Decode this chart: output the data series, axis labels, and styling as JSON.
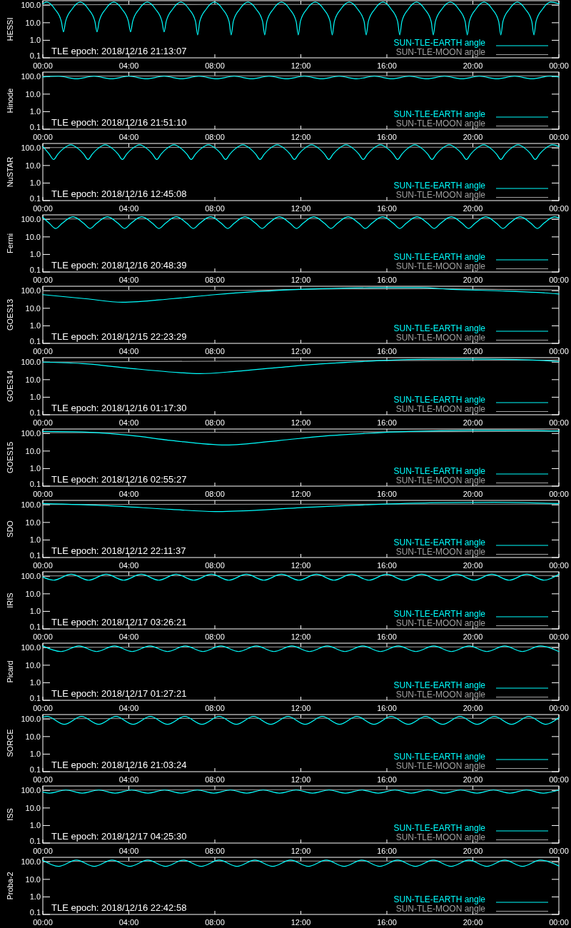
{
  "chart_data": [
    {
      "type": "line",
      "ylabel": "HESSI",
      "annotations": [
        "TLE epoch: 2018/12/16 21:13:07"
      ],
      "xlim": [
        0,
        24
      ],
      "xticks": [
        {
          "value": 0,
          "label": "00:00"
        },
        {
          "value": 4,
          "label": "04:00"
        },
        {
          "value": 8,
          "label": "08:00"
        },
        {
          "value": 12,
          "label": "12:00"
        },
        {
          "value": 16,
          "label": "16:00"
        },
        {
          "value": 20,
          "label": "20:00"
        },
        {
          "value": 24,
          "label": "00:00"
        }
      ],
      "ylim": [
        0.1,
        180
      ],
      "yticks": [
        {
          "value": 0.1,
          "label": "0.1"
        },
        {
          "value": 1,
          "label": "1.0"
        },
        {
          "value": 10,
          "label": "10.0"
        },
        {
          "value": 100,
          "label": "100.0"
        }
      ],
      "log": "y",
      "legend": "bottom right",
      "series": [
        {
          "name": "SUN-TLE-EARTH angle",
          "color": "#00ffff",
          "x": [
            0,
            0.18,
            0.56,
            0.86,
            0.96,
            1.06,
            1.36,
            1.74,
            2.12,
            2.42,
            2.52,
            2.62,
            2.92,
            3.3,
            3.68,
            3.98,
            4.08,
            4.18,
            4.48,
            4.86,
            5.24,
            5.54,
            5.64,
            5.74,
            6.04,
            6.42,
            6.8,
            7.1,
            7.2,
            7.3,
            7.6,
            7.98,
            8.36,
            8.66,
            8.76,
            8.86,
            9.16,
            9.54,
            9.92,
            10.22,
            10.32,
            10.42,
            10.72,
            11.1,
            11.48,
            11.78,
            11.88,
            11.98,
            12.28,
            12.67,
            13.06,
            13.36,
            13.46,
            13.56,
            13.86,
            14.25,
            14.64,
            14.94,
            15.04,
            15.14,
            15.44,
            15.82,
            16.2,
            16.5,
            16.6,
            16.7,
            17.0,
            17.38,
            17.76,
            18.06,
            18.16,
            18.26,
            18.56,
            18.95,
            19.34,
            19.64,
            19.74,
            19.84,
            20.14,
            20.52,
            20.9,
            21.2,
            21.3,
            21.4,
            21.7,
            22.07,
            22.44,
            22.74,
            22.84,
            22.94,
            23.24,
            23.62,
            24
          ],
          "values": [
            120,
            150,
            60,
            12,
            3,
            12,
            60,
            150,
            60,
            12,
            3,
            12,
            60,
            150,
            60,
            12,
            3,
            12,
            60,
            150,
            60,
            12,
            3,
            12,
            60,
            150,
            60,
            12,
            2,
            12,
            60,
            150,
            60,
            12,
            2,
            12,
            60,
            150,
            60,
            12,
            2,
            12,
            60,
            150,
            60,
            12,
            2,
            12,
            60,
            150,
            60,
            12,
            2,
            12,
            60,
            150,
            60,
            12,
            2,
            12,
            60,
            150,
            60,
            12,
            2,
            12,
            60,
            150,
            60,
            12,
            2,
            12,
            60,
            150,
            60,
            12,
            2,
            12,
            60,
            150,
            60,
            12,
            2,
            12,
            60,
            150,
            60,
            12,
            2,
            12,
            60,
            150,
            120
          ]
        },
        {
          "name": "SUN-TLE-MOON angle",
          "color": "#a0a0a0",
          "x": [
            0,
            8,
            24
          ],
          "values": [
            105,
            110,
            110
          ]
        }
      ]
    },
    {
      "type": "line",
      "ylabel": "Hinode",
      "annotations": [
        "TLE epoch: 2018/12/16 21:51:10"
      ],
      "xlim": [
        0,
        24
      ],
      "xticks": [
        {
          "value": 0,
          "label": "00:00"
        },
        {
          "value": 4,
          "label": "04:00"
        },
        {
          "value": 8,
          "label": "08:00"
        },
        {
          "value": 12,
          "label": "12:00"
        },
        {
          "value": 16,
          "label": "16:00"
        },
        {
          "value": 20,
          "label": "20:00"
        },
        {
          "value": 24,
          "label": "00:00"
        }
      ],
      "ylim": [
        0.1,
        180
      ],
      "yticks": [
        {
          "value": 0.1,
          "label": "0.1"
        },
        {
          "value": 1,
          "label": "1.0"
        },
        {
          "value": 10,
          "label": "10.0"
        },
        {
          "value": 100,
          "label": "100.0"
        }
      ],
      "log": "y",
      "legend": "bottom right",
      "series": [
        {
          "name": "SUN-TLE-EARTH angle",
          "color": "#00ffff",
          "x": [
            0,
            0.74,
            1.56,
            2.38,
            3.19,
            4.0,
            4.82,
            5.64,
            6.45,
            7.26,
            8.08,
            8.9,
            9.71,
            10.52,
            11.34,
            12.16,
            12.97,
            13.78,
            14.6,
            15.42,
            16.23,
            17.04,
            17.86,
            18.68,
            19.49,
            20.3,
            21.12,
            21.94,
            22.75,
            23.56,
            24
          ],
          "values": [
            95,
            105,
            75,
            105,
            75,
            105,
            75,
            105,
            75,
            105,
            75,
            105,
            75,
            105,
            75,
            105,
            75,
            105,
            75,
            105,
            75,
            105,
            75,
            105,
            75,
            105,
            75,
            105,
            75,
            105,
            95
          ]
        },
        {
          "name": "SUN-TLE-MOON angle",
          "color": "#a0a0a0",
          "x": [
            0,
            8,
            24
          ],
          "values": [
            105,
            110,
            110
          ]
        }
      ]
    },
    {
      "type": "line",
      "ylabel": "NuSTAR",
      "annotations": [
        "TLE epoch: 2018/12/16 12:45:08"
      ],
      "xlim": [
        0,
        24
      ],
      "xticks": [
        {
          "value": 0,
          "label": "00:00"
        },
        {
          "value": 4,
          "label": "04:00"
        },
        {
          "value": 8,
          "label": "08:00"
        },
        {
          "value": 12,
          "label": "12:00"
        },
        {
          "value": 16,
          "label": "16:00"
        },
        {
          "value": 20,
          "label": "20:00"
        },
        {
          "value": 24,
          "label": "00:00"
        }
      ],
      "ylim": [
        0.1,
        180
      ],
      "yticks": [
        {
          "value": 0.1,
          "label": "0.1"
        },
        {
          "value": 1,
          "label": "1.0"
        },
        {
          "value": 10,
          "label": "10.0"
        },
        {
          "value": 100,
          "label": "100.0"
        }
      ],
      "log": "y",
      "legend": "bottom right",
      "series": [
        {
          "name": "SUN-TLE-EARTH angle",
          "color": "#00ffff",
          "x": [
            0,
            0.3,
            0.5,
            0.7,
            0.95,
            1.3,
            1.65,
            1.9,
            2.1,
            2.3,
            2.55,
            2.9,
            3.25,
            3.5,
            3.7,
            3.9,
            4.15,
            4.5,
            4.85,
            5.1,
            5.3,
            5.5,
            5.75,
            6.1,
            6.45,
            6.7,
            6.9,
            7.1,
            7.35,
            7.7,
            8.05,
            8.3,
            8.5,
            8.7,
            8.95,
            9.3,
            9.65,
            9.9,
            10.1,
            10.3,
            10.55,
            10.9,
            11.25,
            11.5,
            11.7,
            11.9,
            12.15,
            12.5,
            12.85,
            13.1,
            13.3,
            13.5,
            13.75,
            14.1,
            14.45,
            14.7,
            14.9,
            15.1,
            15.35,
            15.7,
            16.05,
            16.3,
            16.5,
            16.7,
            16.95,
            17.3,
            17.65,
            17.9,
            18.1,
            18.3,
            18.55,
            18.9,
            19.25,
            19.5,
            19.7,
            19.9,
            20.15,
            20.5,
            20.85,
            21.1,
            21.3,
            21.5,
            21.75,
            22.1,
            22.45,
            22.7,
            22.9,
            23.1,
            23.35,
            23.7,
            24
          ],
          "values": [
            120,
            45,
            22,
            45,
            90,
            150,
            90,
            45,
            22,
            45,
            90,
            150,
            90,
            45,
            22,
            45,
            90,
            150,
            90,
            45,
            22,
            45,
            90,
            150,
            90,
            45,
            22,
            45,
            90,
            150,
            90,
            45,
            22,
            45,
            90,
            150,
            90,
            45,
            22,
            45,
            90,
            150,
            90,
            45,
            22,
            45,
            90,
            150,
            90,
            45,
            22,
            45,
            90,
            150,
            90,
            45,
            22,
            45,
            90,
            150,
            90,
            45,
            22,
            45,
            90,
            150,
            90,
            45,
            22,
            45,
            90,
            150,
            90,
            45,
            22,
            45,
            90,
            150,
            90,
            45,
            22,
            45,
            90,
            150,
            90,
            45,
            22,
            45,
            90,
            150,
            120
          ]
        },
        {
          "name": "SUN-TLE-MOON angle",
          "color": "#a0a0a0",
          "x": [
            0,
            12,
            24
          ],
          "values": [
            105,
            110,
            110
          ]
        }
      ]
    },
    {
      "type": "line",
      "ylabel": "Fermi",
      "annotations": [
        "TLE epoch: 2018/12/16 20:48:39"
      ],
      "xlim": [
        0,
        24
      ],
      "xticks": [
        {
          "value": 0,
          "label": "00:00"
        },
        {
          "value": 4,
          "label": "04:00"
        },
        {
          "value": 8,
          "label": "08:00"
        },
        {
          "value": 12,
          "label": "12:00"
        },
        {
          "value": 16,
          "label": "16:00"
        },
        {
          "value": 20,
          "label": "20:00"
        },
        {
          "value": 24,
          "label": "00:00"
        }
      ],
      "ylim": [
        0.1,
        180
      ],
      "yticks": [
        {
          "value": 0.1,
          "label": "0.1"
        },
        {
          "value": 1,
          "label": "1.0"
        },
        {
          "value": 10,
          "label": "10.0"
        },
        {
          "value": 100,
          "label": "100.0"
        }
      ],
      "log": "y",
      "legend": "bottom right",
      "series": [
        {
          "name": "SUN-TLE-EARTH angle",
          "color": "#00ffff",
          "x": [
            0,
            0.3,
            0.6,
            0.9,
            1.4,
            1.9,
            2.2,
            2.5,
            3.0,
            3.5,
            3.8,
            4.1,
            4.6,
            5.1,
            5.4,
            5.7,
            6.2,
            6.7,
            7.0,
            7.3,
            7.8,
            8.3,
            8.6,
            8.9,
            9.4,
            9.9,
            10.2,
            10.5,
            11.0,
            11.5,
            11.8,
            12.1,
            12.6,
            13.1,
            13.4,
            13.7,
            14.2,
            14.7,
            15.0,
            15.3,
            15.8,
            16.3,
            16.6,
            16.9,
            17.4,
            17.9,
            18.2,
            18.5,
            19.0,
            19.5,
            19.8,
            20.1,
            20.6,
            21.1,
            21.4,
            21.7,
            22.2,
            22.7,
            23.0,
            23.3,
            23.8,
            24
          ],
          "values": [
            130,
            60,
            30,
            60,
            140,
            60,
            30,
            60,
            140,
            60,
            30,
            60,
            140,
            60,
            30,
            60,
            140,
            60,
            30,
            60,
            140,
            60,
            30,
            60,
            140,
            60,
            30,
            60,
            140,
            60,
            30,
            60,
            140,
            60,
            30,
            60,
            140,
            60,
            30,
            60,
            140,
            60,
            30,
            60,
            140,
            60,
            30,
            60,
            140,
            60,
            30,
            60,
            140,
            60,
            30,
            60,
            140,
            60,
            30,
            60,
            140,
            120
          ]
        },
        {
          "name": "SUN-TLE-MOON angle",
          "color": "#a0a0a0",
          "x": [
            0,
            12,
            24
          ],
          "values": [
            105,
            110,
            110
          ]
        }
      ]
    },
    {
      "type": "line",
      "ylabel": "GOES13",
      "annotations": [
        "TLE epoch: 2018/12/15 22:23:29"
      ],
      "xlim": [
        0,
        24
      ],
      "xticks": [
        {
          "value": 0,
          "label": "00:00"
        },
        {
          "value": 4,
          "label": "04:00"
        },
        {
          "value": 8,
          "label": "08:00"
        },
        {
          "value": 12,
          "label": "12:00"
        },
        {
          "value": 16,
          "label": "16:00"
        },
        {
          "value": 20,
          "label": "20:00"
        },
        {
          "value": 24,
          "label": "00:00"
        }
      ],
      "ylim": [
        0.1,
        180
      ],
      "yticks": [
        {
          "value": 0.1,
          "label": "0.1"
        },
        {
          "value": 1,
          "label": "1.0"
        },
        {
          "value": 10,
          "label": "10.0"
        },
        {
          "value": 100,
          "label": "100.0"
        }
      ],
      "log": "y",
      "legend": "bottom right",
      "series": [
        {
          "name": "SUN-TLE-EARTH angle",
          "color": "#00ffff",
          "x": [
            0,
            2,
            3.7,
            6,
            8,
            10,
            12,
            14,
            16,
            17.5,
            19,
            21,
            23,
            24
          ],
          "values": [
            60,
            35,
            22,
            35,
            60,
            90,
            120,
            140,
            150,
            150,
            120,
            100,
            80,
            65
          ]
        },
        {
          "name": "SUN-TLE-MOON angle",
          "color": "#a0a0a0",
          "x": [
            0,
            9,
            13,
            18,
            22,
            24
          ],
          "values": [
            100,
            105,
            125,
            130,
            115,
            110
          ]
        }
      ]
    },
    {
      "type": "line",
      "ylabel": "GOES14",
      "annotations": [
        "TLE epoch: 2018/12/16 01:17:30"
      ],
      "xlim": [
        0,
        24
      ],
      "xticks": [
        {
          "value": 0,
          "label": "00:00"
        },
        {
          "value": 4,
          "label": "04:00"
        },
        {
          "value": 8,
          "label": "08:00"
        },
        {
          "value": 12,
          "label": "12:00"
        },
        {
          "value": 16,
          "label": "16:00"
        },
        {
          "value": 20,
          "label": "20:00"
        },
        {
          "value": 24,
          "label": "00:00"
        }
      ],
      "ylim": [
        0.1,
        180
      ],
      "yticks": [
        {
          "value": 0.1,
          "label": "0.1"
        },
        {
          "value": 1,
          "label": "1.0"
        },
        {
          "value": 10,
          "label": "10.0"
        },
        {
          "value": 100,
          "label": "100.0"
        }
      ],
      "log": "y",
      "legend": "bottom right",
      "series": [
        {
          "name": "SUN-TLE-EARTH angle",
          "color": "#00ffff",
          "x": [
            0,
            2,
            4,
            6,
            7.3,
            9,
            11,
            13,
            15,
            17,
            19.5,
            22,
            24
          ],
          "values": [
            100,
            80,
            45,
            27,
            22,
            30,
            50,
            80,
            110,
            140,
            150,
            140,
            110
          ]
        },
        {
          "name": "SUN-TLE-MOON angle",
          "color": "#a0a0a0",
          "x": [
            0,
            12,
            24
          ],
          "values": [
            100,
            120,
            130
          ]
        }
      ]
    },
    {
      "type": "line",
      "ylabel": "GOES15",
      "annotations": [
        "TLE epoch: 2018/12/16 02:55:27"
      ],
      "xlim": [
        0,
        24
      ],
      "xticks": [
        {
          "value": 0,
          "label": "00:00"
        },
        {
          "value": 4,
          "label": "04:00"
        },
        {
          "value": 8,
          "label": "08:00"
        },
        {
          "value": 12,
          "label": "12:00"
        },
        {
          "value": 16,
          "label": "16:00"
        },
        {
          "value": 20,
          "label": "20:00"
        },
        {
          "value": 24,
          "label": "00:00"
        }
      ],
      "ylim": [
        0.1,
        180
      ],
      "yticks": [
        {
          "value": 0.1,
          "label": "0.1"
        },
        {
          "value": 1,
          "label": "1.0"
        },
        {
          "value": 10,
          "label": "10.0"
        },
        {
          "value": 100,
          "label": "100.0"
        }
      ],
      "log": "y",
      "legend": "bottom right",
      "series": [
        {
          "name": "SUN-TLE-EARTH angle",
          "color": "#00ffff",
          "x": [
            0,
            2,
            4,
            6,
            8.5,
            11,
            13,
            15,
            17,
            20,
            22,
            24
          ],
          "values": [
            130,
            120,
            80,
            40,
            22,
            40,
            70,
            100,
            130,
            150,
            150,
            140
          ]
        },
        {
          "name": "SUN-TLE-MOON angle",
          "color": "#a0a0a0",
          "x": [
            0,
            12,
            24
          ],
          "values": [
            110,
            120,
            135
          ]
        }
      ]
    },
    {
      "type": "line",
      "ylabel": "SDO",
      "annotations": [
        "TLE epoch: 2018/12/12 22:11:37"
      ],
      "xlim": [
        0,
        24
      ],
      "xticks": [
        {
          "value": 0,
          "label": "00:00"
        },
        {
          "value": 4,
          "label": "04:00"
        },
        {
          "value": 8,
          "label": "08:00"
        },
        {
          "value": 12,
          "label": "12:00"
        },
        {
          "value": 16,
          "label": "16:00"
        },
        {
          "value": 20,
          "label": "20:00"
        },
        {
          "value": 24,
          "label": "00:00"
        }
      ],
      "ylim": [
        0.1,
        180
      ],
      "yticks": [
        {
          "value": 0.1,
          "label": "0.1"
        },
        {
          "value": 1,
          "label": "1.0"
        },
        {
          "value": 10,
          "label": "10.0"
        },
        {
          "value": 100,
          "label": "100.0"
        }
      ],
      "log": "y",
      "legend": "bottom right",
      "series": [
        {
          "name": "SUN-TLE-EARTH angle",
          "color": "#00ffff",
          "x": [
            0,
            3,
            6,
            8,
            10,
            12,
            15,
            18,
            21,
            24
          ],
          "values": [
            120,
            90,
            55,
            42,
            50,
            70,
            100,
            130,
            140,
            120
          ]
        },
        {
          "name": "SUN-TLE-MOON angle",
          "color": "#a0a0a0",
          "x": [
            0,
            12,
            24
          ],
          "values": [
            105,
            110,
            110
          ]
        }
      ]
    },
    {
      "type": "line",
      "ylabel": "IRIS",
      "annotations": [
        "TLE epoch: 2018/12/17 03:26:21"
      ],
      "xlim": [
        0,
        24
      ],
      "xticks": [
        {
          "value": 0,
          "label": "00:00"
        },
        {
          "value": 4,
          "label": "04:00"
        },
        {
          "value": 8,
          "label": "08:00"
        },
        {
          "value": 12,
          "label": "12:00"
        },
        {
          "value": 16,
          "label": "16:00"
        },
        {
          "value": 20,
          "label": "20:00"
        },
        {
          "value": 24,
          "label": "00:00"
        }
      ],
      "ylim": [
        0.1,
        180
      ],
      "yticks": [
        {
          "value": 0.1,
          "label": "0.1"
        },
        {
          "value": 1,
          "label": "1.0"
        },
        {
          "value": 10,
          "label": "10.0"
        },
        {
          "value": 100,
          "label": "100.0"
        }
      ],
      "log": "y",
      "legend": "bottom right",
      "series": [
        {
          "name": "SUN-TLE-EARTH angle",
          "color": "#00ffff",
          "x": [
            0,
            0.5,
            1.32,
            2.13,
            2.95,
            3.76,
            4.58,
            5.39,
            6.21,
            7.02,
            7.84,
            8.65,
            9.47,
            10.28,
            11.1,
            11.91,
            12.73,
            13.54,
            14.36,
            15.17,
            15.99,
            16.8,
            17.62,
            18.43,
            19.25,
            20.06,
            20.88,
            21.69,
            22.51,
            23.32,
            24
          ],
          "values": [
            90,
            60,
            130,
            60,
            130,
            60,
            130,
            60,
            130,
            60,
            130,
            60,
            130,
            60,
            130,
            60,
            130,
            60,
            130,
            60,
            130,
            60,
            130,
            60,
            130,
            60,
            130,
            60,
            130,
            60,
            130
          ]
        },
        {
          "name": "SUN-TLE-MOON angle",
          "color": "#a0a0a0",
          "x": [
            0,
            12,
            24
          ],
          "values": [
            105,
            110,
            110
          ]
        }
      ]
    },
    {
      "type": "line",
      "ylabel": "Picard",
      "annotations": [
        "TLE epoch: 2018/12/17 01:27:21"
      ],
      "xlim": [
        0,
        24
      ],
      "xticks": [
        {
          "value": 0,
          "label": "00:00"
        },
        {
          "value": 4,
          "label": "04:00"
        },
        {
          "value": 8,
          "label": "08:00"
        },
        {
          "value": 12,
          "label": "12:00"
        },
        {
          "value": 16,
          "label": "16:00"
        },
        {
          "value": 20,
          "label": "20:00"
        },
        {
          "value": 24,
          "label": "00:00"
        }
      ],
      "ylim": [
        0.1,
        180
      ],
      "yticks": [
        {
          "value": 0.1,
          "label": "0.1"
        },
        {
          "value": 1,
          "label": "1.0"
        },
        {
          "value": 10,
          "label": "10.0"
        },
        {
          "value": 100,
          "label": "100.0"
        }
      ],
      "log": "y",
      "legend": "bottom right",
      "series": [
        {
          "name": "SUN-TLE-EARTH angle",
          "color": "#00ffff",
          "x": [
            0,
            0.85,
            1.68,
            2.5,
            3.33,
            4.15,
            4.98,
            5.8,
            6.63,
            7.45,
            8.28,
            9.1,
            9.93,
            10.75,
            11.58,
            12.4,
            13.23,
            14.05,
            14.88,
            15.7,
            16.53,
            17.35,
            18.18,
            19.0,
            19.83,
            20.65,
            21.48,
            22.3,
            23.13,
            24
          ],
          "values": [
            125,
            60,
            125,
            60,
            125,
            60,
            125,
            60,
            125,
            60,
            125,
            60,
            125,
            60,
            125,
            60,
            125,
            60,
            125,
            60,
            125,
            60,
            125,
            60,
            125,
            60,
            125,
            60,
            125,
            60
          ]
        },
        {
          "name": "SUN-TLE-MOON angle",
          "color": "#a0a0a0",
          "x": [
            0,
            12,
            24
          ],
          "values": [
            105,
            110,
            110
          ]
        }
      ]
    },
    {
      "type": "line",
      "ylabel": "SORCE",
      "annotations": [
        "TLE epoch: 2018/12/16 21:03:24"
      ],
      "xlim": [
        0,
        24
      ],
      "xticks": [
        {
          "value": 0,
          "label": "00:00"
        },
        {
          "value": 4,
          "label": "04:00"
        },
        {
          "value": 8,
          "label": "08:00"
        },
        {
          "value": 12,
          "label": "12:00"
        },
        {
          "value": 16,
          "label": "16:00"
        },
        {
          "value": 20,
          "label": "20:00"
        },
        {
          "value": 24,
          "label": "00:00"
        }
      ],
      "ylim": [
        0.1,
        180
      ],
      "yticks": [
        {
          "value": 0.1,
          "label": "0.1"
        },
        {
          "value": 1,
          "label": "1.0"
        },
        {
          "value": 10,
          "label": "10.0"
        },
        {
          "value": 100,
          "label": "100.0"
        }
      ],
      "log": "y",
      "legend": "bottom right",
      "series": [
        {
          "name": "SUN-TLE-EARTH angle",
          "color": "#00ffff",
          "x": [
            0,
            0.2,
            1.0,
            1.8,
            2.6,
            3.4,
            4.2,
            5.0,
            5.8,
            6.6,
            7.4,
            8.2,
            9.0,
            9.8,
            10.6,
            11.4,
            12.2,
            13.0,
            13.8,
            14.6,
            15.4,
            16.2,
            17.0,
            17.8,
            18.6,
            19.4,
            20.2,
            21.0,
            21.8,
            22.6,
            23.4,
            24
          ],
          "values": [
            130,
            140,
            50,
            140,
            50,
            140,
            50,
            140,
            50,
            140,
            50,
            140,
            50,
            140,
            50,
            140,
            50,
            140,
            50,
            140,
            50,
            140,
            50,
            140,
            50,
            140,
            50,
            140,
            50,
            140,
            50,
            120
          ]
        },
        {
          "name": "SUN-TLE-MOON angle",
          "color": "#a0a0a0",
          "x": [
            0,
            12,
            24
          ],
          "values": [
            105,
            110,
            110
          ]
        }
      ]
    },
    {
      "type": "line",
      "ylabel": "ISS",
      "annotations": [
        "TLE epoch: 2018/12/17 04:25:30"
      ],
      "xlim": [
        0,
        24
      ],
      "xticks": [
        {
          "value": 0,
          "label": "00:00"
        },
        {
          "value": 4,
          "label": "04:00"
        },
        {
          "value": 8,
          "label": "08:00"
        },
        {
          "value": 12,
          "label": "12:00"
        },
        {
          "value": 16,
          "label": "16:00"
        },
        {
          "value": 20,
          "label": "20:00"
        },
        {
          "value": 24,
          "label": "00:00"
        }
      ],
      "ylim": [
        0.1,
        180
      ],
      "yticks": [
        {
          "value": 0.1,
          "label": "0.1"
        },
        {
          "value": 1,
          "label": "1.0"
        },
        {
          "value": 10,
          "label": "10.0"
        },
        {
          "value": 100,
          "label": "100.0"
        }
      ],
      "log": "y",
      "legend": "bottom right",
      "series": [
        {
          "name": "SUN-TLE-EARTH angle",
          "color": "#00ffff",
          "x": [
            0,
            0.3,
            1.07,
            1.83,
            2.6,
            3.36,
            4.13,
            4.89,
            5.66,
            6.42,
            7.19,
            7.95,
            8.72,
            9.48,
            10.25,
            11.01,
            11.78,
            12.54,
            13.31,
            14.07,
            14.84,
            15.6,
            16.37,
            17.13,
            17.9,
            18.66,
            19.43,
            20.19,
            20.96,
            21.72,
            22.49,
            23.25,
            24
          ],
          "values": [
            80,
            70,
            105,
            70,
            105,
            70,
            105,
            70,
            105,
            70,
            105,
            70,
            105,
            70,
            105,
            70,
            105,
            70,
            105,
            70,
            105,
            70,
            105,
            70,
            105,
            70,
            105,
            70,
            105,
            70,
            105,
            70,
            105
          ]
        },
        {
          "name": "SUN-TLE-MOON angle",
          "color": "#a0a0a0",
          "x": [
            0,
            12,
            24
          ],
          "values": [
            105,
            110,
            110
          ]
        }
      ]
    },
    {
      "type": "line",
      "ylabel": "Proba-2",
      "annotations": [
        "TLE epoch: 2018/12/16 22:42:58"
      ],
      "xlim": [
        0,
        24
      ],
      "xticks": [
        {
          "value": 0,
          "label": "00:00"
        },
        {
          "value": 4,
          "label": "04:00"
        },
        {
          "value": 8,
          "label": "08:00"
        },
        {
          "value": 12,
          "label": "12:00"
        },
        {
          "value": 16,
          "label": "16:00"
        },
        {
          "value": 20,
          "label": "20:00"
        },
        {
          "value": 24,
          "label": "00:00"
        }
      ],
      "ylim": [
        0.1,
        180
      ],
      "yticks": [
        {
          "value": 0.1,
          "label": "0.1"
        },
        {
          "value": 1,
          "label": "1.0"
        },
        {
          "value": 10,
          "label": "10.0"
        },
        {
          "value": 100,
          "label": "100.0"
        }
      ],
      "log": "y",
      "legend": "bottom right",
      "series": [
        {
          "name": "SUN-TLE-EARTH angle",
          "color": "#00ffff",
          "x": [
            0,
            0.73,
            1.56,
            2.39,
            3.22,
            4.05,
            4.88,
            5.71,
            6.54,
            7.37,
            8.2,
            9.03,
            9.86,
            10.69,
            11.52,
            12.35,
            13.18,
            14.01,
            14.84,
            15.67,
            16.5,
            17.33,
            18.16,
            18.99,
            19.82,
            20.65,
            21.48,
            22.31,
            23.14,
            24
          ],
          "values": [
            120,
            55,
            125,
            55,
            125,
            55,
            125,
            55,
            125,
            55,
            125,
            55,
            125,
            55,
            125,
            55,
            125,
            55,
            125,
            55,
            125,
            55,
            125,
            55,
            125,
            55,
            125,
            55,
            125,
            58
          ]
        },
        {
          "name": "SUN-TLE-MOON angle",
          "color": "#a0a0a0",
          "x": [
            0,
            12,
            24
          ],
          "values": [
            105,
            110,
            110
          ]
        }
      ]
    }
  ]
}
